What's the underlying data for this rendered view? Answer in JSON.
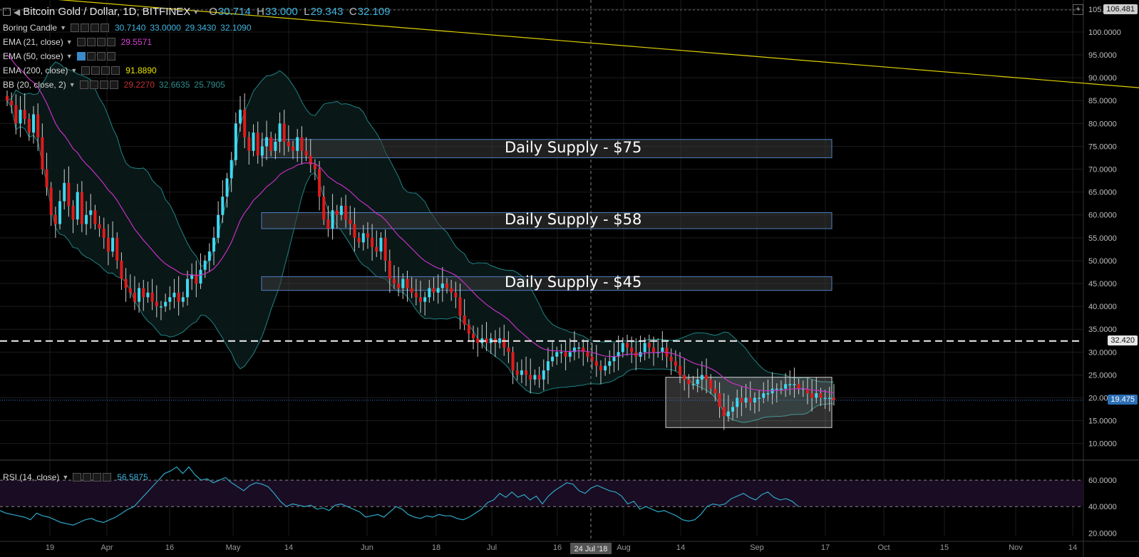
{
  "header": {
    "title": "Bitcoin Gold / Dollar, 1D, BITFINEX",
    "ohlc": {
      "o": "30.714",
      "h": "33.000",
      "l": "29.343",
      "c": "32.109"
    }
  },
  "legends": [
    {
      "name": "Boring Candle",
      "values": [
        "30.7140",
        "33.0000",
        "29.3430",
        "32.1090"
      ],
      "colors": [
        "#3fb6e0",
        "#3fb6e0",
        "#3fb6e0",
        "#3fb6e0"
      ]
    },
    {
      "name": "EMA (21, close)",
      "values": [
        "29.5571"
      ],
      "colors": [
        "#d641d6"
      ]
    },
    {
      "name": "EMA (50, close)",
      "values": [],
      "colors": []
    },
    {
      "name": "EMA (200, close)",
      "values": [
        "91.8890"
      ],
      "colors": [
        "#e6e600"
      ]
    },
    {
      "name": "BB (20, close, 2)",
      "values": [
        "29.2270",
        "32.6635",
        "25.7905"
      ],
      "colors": [
        "#c03030",
        "#2d8e8e",
        "#2d8e8e"
      ]
    }
  ],
  "rsi_legend": {
    "name": "RSI (14, close)",
    "value": "56.5875"
  },
  "price_tags": {
    "top": "106.481",
    "level": "32.420",
    "current": "19.475"
  },
  "zones": [
    {
      "label": "Daily Supply - $75",
      "low": 72.5,
      "high": 76.5
    },
    {
      "label": "Daily Supply - $58",
      "low": 57.0,
      "high": 60.5
    },
    {
      "label": "Daily Supply - $45",
      "low": 43.5,
      "high": 46.5
    }
  ],
  "crosshair_label": "24 Jul '18",
  "colors": {
    "up": "#3fd8f0",
    "down": "#e01b1b",
    "ema21": "#c431c4",
    "ema200": "#e0d000",
    "bb": "#1f8484",
    "rsi": "#2ea8c8"
  },
  "chart_data": [
    {
      "type": "candlestick",
      "title": "Bitcoin Gold / Dollar, 1D, BITFINEX",
      "ylim": [
        7,
        107
      ],
      "yticks": [
        "10.0000",
        "15.0000",
        "20.0000",
        "25.0000",
        "30.0000",
        "35.0000",
        "40.0000",
        "45.0000",
        "50.0000",
        "55.0000",
        "60.0000",
        "65.0000",
        "70.0000",
        "75.0000",
        "80.0000",
        "85.0000",
        "90.0000",
        "95.0000",
        "100.0000",
        "105.0000"
      ],
      "xticks": [
        "19",
        "Apr",
        "16",
        "May",
        "14",
        "Jun",
        "18",
        "Jul",
        "16",
        "Aug",
        "14",
        "Sep",
        "17",
        "Oct",
        "15",
        "Nov",
        "14"
      ],
      "x_start": "2018-03-09",
      "close": [
        85,
        84,
        80,
        83,
        81,
        78,
        82,
        77,
        70,
        66,
        60,
        58,
        63,
        67,
        62,
        59,
        65,
        58,
        60,
        61,
        58,
        57,
        55,
        52,
        55,
        50,
        46,
        44,
        43,
        41,
        44,
        42,
        43,
        41,
        40,
        40,
        41,
        42,
        43,
        41,
        42,
        46,
        47,
        45,
        48,
        50,
        52,
        55,
        60,
        64,
        68,
        72,
        80,
        83,
        77,
        74,
        78,
        73,
        75,
        77,
        74,
        76,
        80,
        76,
        75,
        74,
        77,
        74,
        73,
        71,
        70,
        64,
        59,
        57,
        61,
        60,
        62,
        59,
        58,
        55,
        54,
        56,
        55,
        53,
        52,
        55,
        50,
        46,
        45,
        44,
        46,
        44,
        43,
        42,
        41,
        42,
        44,
        43,
        44,
        45,
        44,
        43,
        42,
        38,
        36,
        34,
        33,
        32,
        33,
        32,
        33,
        32,
        33,
        31,
        30,
        26,
        25,
        26,
        25,
        24,
        25,
        24,
        26,
        28,
        29,
        30,
        30,
        29,
        30,
        31,
        31,
        30,
        29,
        28,
        27,
        26,
        27,
        28,
        29,
        30,
        32,
        31,
        30,
        29,
        30,
        32,
        31,
        30,
        30,
        31,
        29,
        28,
        27,
        25,
        24,
        23,
        23,
        24,
        25,
        24,
        22,
        21,
        18,
        16,
        17,
        18,
        20,
        19,
        20,
        19,
        20,
        20,
        21,
        21,
        22,
        22,
        22,
        23,
        23,
        23,
        22,
        22,
        21,
        20,
        21,
        20,
        20,
        20,
        19.5
      ],
      "series": [
        {
          "name": "EMA (21, close)",
          "values": []
        },
        {
          "name": "EMA (200, close)",
          "values": [
            [
              0,
              108
            ],
            [
              370,
              79
            ],
            [
              470,
              66
            ]
          ]
        }
      ],
      "annotations": [
        "Daily Supply - $75",
        "Daily Supply - $58",
        "Daily Supply - $45"
      ],
      "hline": 32.42
    },
    {
      "type": "line",
      "title": "RSI (14, close)",
      "ylim": [
        18,
        73
      ],
      "yticks": [
        "20.0000",
        "40.0000",
        "60.0000"
      ],
      "bands": [
        40,
        60
      ],
      "values": [
        37,
        35,
        34,
        33,
        32,
        30,
        35,
        33,
        32,
        30,
        28,
        27,
        26,
        28,
        30,
        31,
        29,
        28,
        30,
        32,
        35,
        38,
        40,
        45,
        50,
        55,
        60,
        65,
        67,
        70,
        65,
        70,
        64,
        60,
        61,
        58,
        60,
        62,
        58,
        55,
        52,
        56,
        58,
        57,
        55,
        50,
        44,
        40,
        42,
        41,
        40,
        41,
        38,
        39,
        37,
        41,
        42,
        40,
        38,
        36,
        32,
        33,
        34,
        32,
        36,
        40,
        38,
        34,
        32,
        31,
        33,
        32,
        34,
        33,
        33,
        31,
        30,
        32,
        35,
        38,
        43,
        45,
        50,
        47,
        51,
        47,
        49,
        45,
        48,
        42,
        48,
        52,
        55,
        58,
        57,
        52,
        50,
        54,
        56,
        54,
        52,
        51,
        48,
        42,
        44,
        38,
        40,
        38,
        36,
        37,
        35,
        33,
        30,
        29,
        30,
        34,
        40,
        42,
        41,
        42,
        46,
        48,
        50,
        47,
        45,
        49,
        51,
        47,
        45,
        46,
        44,
        40
      ]
    }
  ]
}
